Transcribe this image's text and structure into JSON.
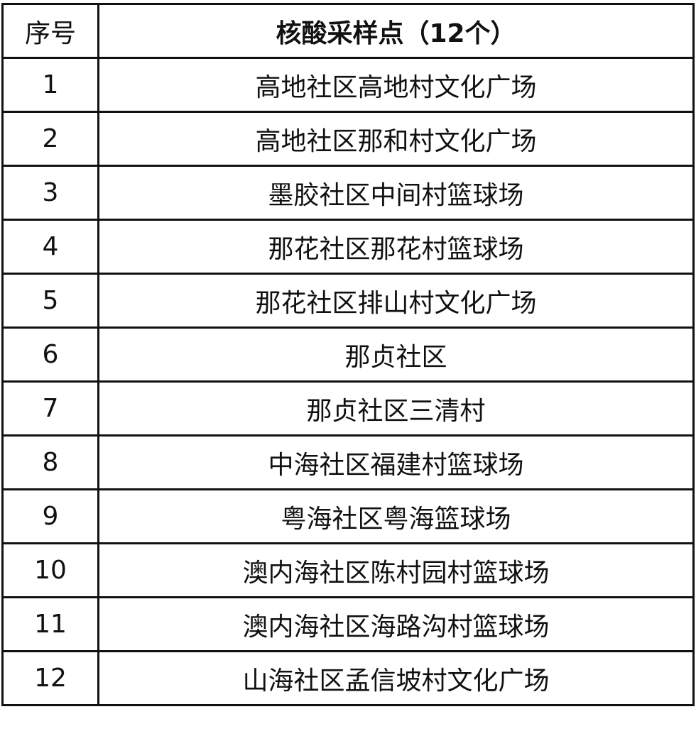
{
  "table": {
    "headers": {
      "index": "序号",
      "site": "核酸采样点（12个）"
    },
    "rows": [
      {
        "index": "1",
        "site": "高地社区高地村文化广场"
      },
      {
        "index": "2",
        "site": "高地社区那和村文化广场"
      },
      {
        "index": "3",
        "site": "墨胶社区中间村篮球场"
      },
      {
        "index": "4",
        "site": "那花社区那花村篮球场"
      },
      {
        "index": "5",
        "site": "那花社区排山村文化广场"
      },
      {
        "index": "6",
        "site": "那贞社区"
      },
      {
        "index": "7",
        "site": "那贞社区三清村"
      },
      {
        "index": "8",
        "site": "中海社区福建村篮球场"
      },
      {
        "index": "9",
        "site": "粤海社区粤海篮球场"
      },
      {
        "index": "10",
        "site": "澳内海社区陈村园村篮球场"
      },
      {
        "index": "11",
        "site": "澳内海社区海路沟村篮球场"
      },
      {
        "index": "12",
        "site": "山海社区孟信坡村文化广场"
      }
    ]
  }
}
